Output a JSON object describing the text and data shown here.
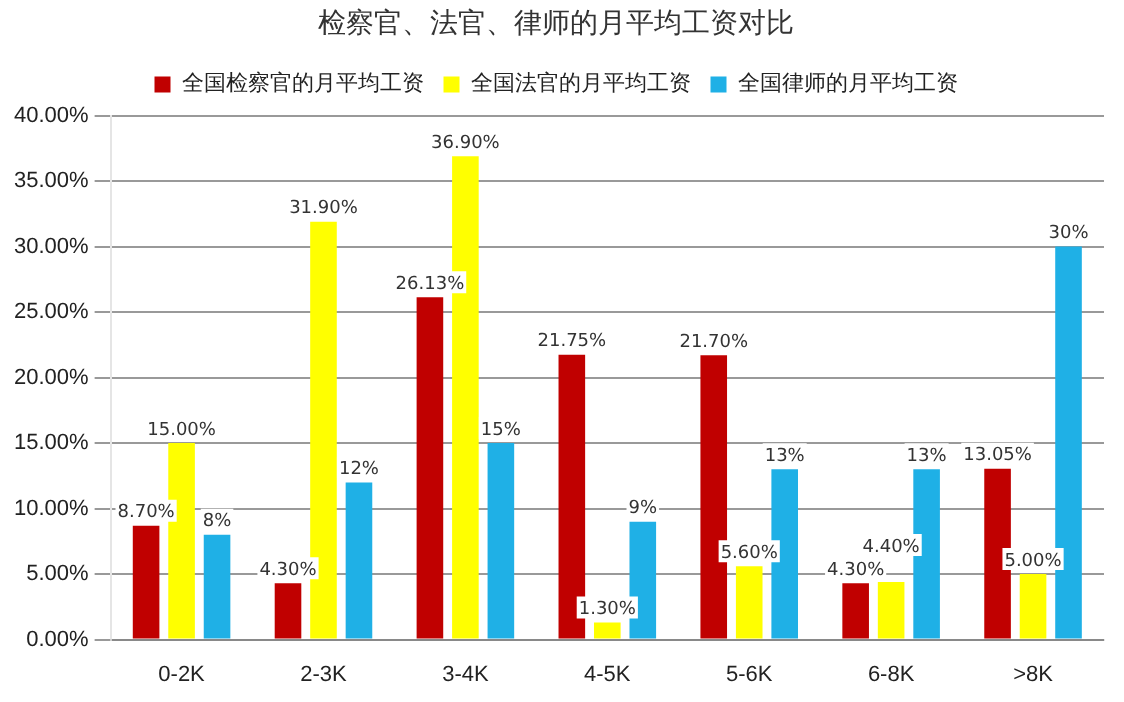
{
  "chart_data": {
    "type": "bar",
    "title": "检察官、法官、律师的月平均工资对比",
    "categories": [
      "0-2K",
      "2-3K",
      "3-4K",
      "4-5K",
      "5-6K",
      "6-8K",
      ">8K"
    ],
    "series": [
      {
        "name": "全国检察官的月平均工资",
        "color": "#c00000",
        "values": [
          8.7,
          4.3,
          26.13,
          21.75,
          21.7,
          4.3,
          13.05
        ],
        "value_labels": [
          "8.70%",
          "4.30%",
          "26.13%",
          "21.75%",
          "21.70%",
          "4.30%",
          "13.05%"
        ]
      },
      {
        "name": "全国法官的月平均工资",
        "color": "#ffff00",
        "values": [
          15,
          31.9,
          36.9,
          1.3,
          5.6,
          4.4,
          5
        ],
        "value_labels": [
          "15.00%",
          "31.90%",
          "36.90%",
          "1.30%",
          "5.60%",
          "4.40%",
          "5.00%"
        ]
      },
      {
        "name": "全国律师的月平均工资",
        "color": "#1fb0e6",
        "values": [
          8,
          12,
          15,
          9,
          13,
          13,
          30
        ],
        "value_labels": [
          "8%",
          "12%",
          "15%",
          "9%",
          "13%",
          "13%",
          "30%"
        ]
      }
    ],
    "ylim": [
      0,
      40
    ],
    "yticks": [
      {
        "value": 0,
        "label": "0.00%"
      },
      {
        "value": 5,
        "label": "5.00%"
      },
      {
        "value": 10,
        "label": "10.00%"
      },
      {
        "value": 15,
        "label": "15.00%"
      },
      {
        "value": 20,
        "label": "20.00%"
      },
      {
        "value": 25,
        "label": "25.00%"
      },
      {
        "value": 30,
        "label": "30.00%"
      },
      {
        "value": 35,
        "label": "35.00%"
      },
      {
        "value": 40,
        "label": "40.00%"
      }
    ],
    "grid": "y",
    "legend": "top"
  }
}
